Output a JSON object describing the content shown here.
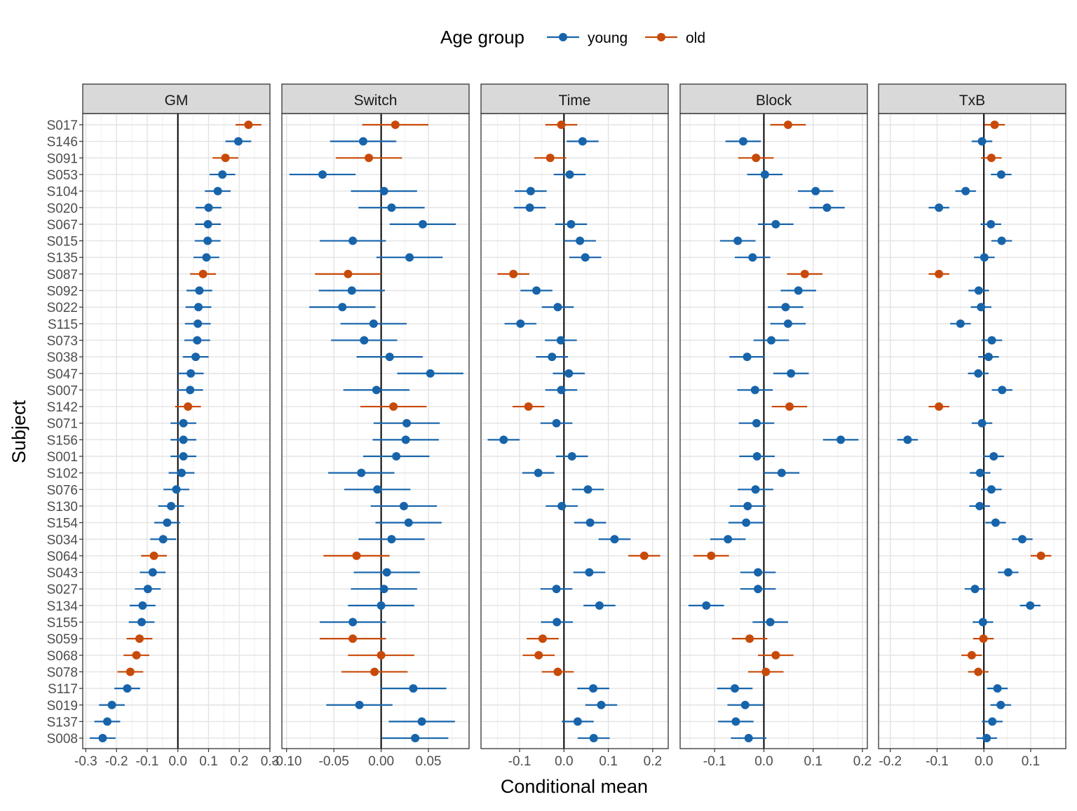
{
  "chart_data": {
    "type": "scatter",
    "xlabel": "Conditional mean",
    "ylabel": "Subject",
    "legend": {
      "title": "Age group",
      "placement": "top",
      "entries": [
        {
          "name": "young",
          "color": "#1764AB"
        },
        {
          "name": "old",
          "color": "#C84A08"
        }
      ]
    },
    "subjects": [
      "S017",
      "S146",
      "S091",
      "S053",
      "S104",
      "S020",
      "S067",
      "S015",
      "S135",
      "S087",
      "S092",
      "S022",
      "S115",
      "S073",
      "S038",
      "S047",
      "S007",
      "S142",
      "S071",
      "S156",
      "S001",
      "S102",
      "S076",
      "S130",
      "S154",
      "S034",
      "S064",
      "S043",
      "S027",
      "S134",
      "S155",
      "S059",
      "S068",
      "S078",
      "S117",
      "S019",
      "S137",
      "S008"
    ],
    "groups": [
      "old",
      "young",
      "old",
      "young",
      "young",
      "young",
      "young",
      "young",
      "young",
      "old",
      "young",
      "young",
      "young",
      "young",
      "young",
      "young",
      "young",
      "old",
      "young",
      "young",
      "young",
      "young",
      "young",
      "young",
      "young",
      "young",
      "old",
      "young",
      "young",
      "young",
      "young",
      "old",
      "old",
      "old",
      "young",
      "young",
      "young",
      "young"
    ],
    "panels": [
      {
        "name": "GM",
        "xlim": [
          -0.31,
          0.3
        ],
        "ticks": [
          -0.3,
          -0.2,
          -0.1,
          0.0,
          0.1,
          0.2,
          0.3
        ],
        "tick_labels": [
          "-0.3",
          "-0.2",
          "-0.1",
          "0.0",
          "0.1",
          "0.2",
          "0.3"
        ],
        "halfwidth": 0.042,
        "values": [
          0.23,
          0.197,
          0.155,
          0.145,
          0.13,
          0.1,
          0.098,
          0.097,
          0.093,
          0.082,
          0.07,
          0.067,
          0.065,
          0.063,
          0.058,
          0.042,
          0.04,
          0.033,
          0.018,
          0.018,
          0.018,
          0.012,
          -0.005,
          -0.022,
          -0.035,
          -0.048,
          -0.078,
          -0.082,
          -0.098,
          -0.115,
          -0.118,
          -0.125,
          -0.135,
          -0.155,
          -0.165,
          -0.215,
          -0.23,
          -0.245
        ]
      },
      {
        "name": "Switch",
        "xlim": [
          -0.105,
          0.093
        ],
        "ticks": [
          -0.1,
          -0.05,
          0.0,
          0.05
        ],
        "tick_labels": [
          "-0.10",
          "-0.05",
          "0.00",
          "0.05"
        ],
        "halfwidth": 0.035,
        "values": [
          0.015,
          -0.019,
          -0.013,
          -0.062,
          0.003,
          0.011,
          0.044,
          -0.03,
          0.03,
          -0.035,
          -0.031,
          -0.041,
          -0.008,
          -0.018,
          0.009,
          0.052,
          -0.005,
          0.013,
          0.027,
          0.026,
          0.016,
          -0.021,
          -0.004,
          0.024,
          0.029,
          0.011,
          -0.026,
          0.006,
          0.003,
          0.0,
          -0.03,
          -0.03,
          0.0,
          -0.007,
          0.034,
          -0.023,
          0.043,
          0.036
        ]
      },
      {
        "name": "Time",
        "xlim": [
          -0.187,
          0.235
        ],
        "ticks": [
          -0.1,
          0.0,
          0.1,
          0.2
        ],
        "tick_labels": [
          "-0.1",
          "0.0",
          "0.1",
          "0.2"
        ],
        "halfwidth": 0.036,
        "values": [
          -0.006,
          0.042,
          -0.031,
          0.013,
          -0.075,
          -0.077,
          0.016,
          0.036,
          0.048,
          -0.114,
          -0.062,
          -0.014,
          -0.098,
          -0.007,
          -0.027,
          0.011,
          -0.006,
          -0.08,
          -0.017,
          -0.136,
          0.018,
          -0.058,
          0.054,
          -0.005,
          0.059,
          0.114,
          0.181,
          0.057,
          -0.017,
          0.08,
          -0.016,
          -0.048,
          -0.057,
          -0.014,
          0.066,
          0.084,
          0.031,
          0.067
        ]
      },
      {
        "name": "Block",
        "xlim": [
          -0.17,
          0.21
        ],
        "ticks": [
          -0.1,
          0.0,
          0.1,
          0.2
        ],
        "tick_labels": [
          "-0.1",
          "0.0",
          "0.1",
          "0.2"
        ],
        "halfwidth": 0.036,
        "values": [
          0.049,
          -0.042,
          -0.016,
          0.002,
          0.105,
          0.128,
          0.024,
          -0.053,
          -0.023,
          0.083,
          0.07,
          0.044,
          0.049,
          0.015,
          -0.034,
          0.055,
          -0.018,
          0.052,
          -0.015,
          0.156,
          -0.014,
          0.036,
          -0.017,
          -0.033,
          -0.036,
          -0.073,
          -0.107,
          -0.012,
          -0.012,
          -0.117,
          0.013,
          -0.029,
          0.024,
          0.004,
          -0.059,
          -0.038,
          -0.057,
          -0.031
        ]
      },
      {
        "name": "TxB",
        "xlim": [
          -0.225,
          0.175
        ],
        "ticks": [
          -0.2,
          -0.1,
          0.0,
          0.1
        ],
        "tick_labels": [
          "-0.2",
          "-0.1",
          "0.0",
          "0.1"
        ],
        "halfwidth": 0.022,
        "values": [
          0.023,
          -0.004,
          0.016,
          0.037,
          -0.039,
          -0.096,
          0.015,
          0.038,
          0.001,
          -0.096,
          -0.011,
          -0.006,
          -0.05,
          0.017,
          0.01,
          -0.012,
          0.039,
          -0.096,
          -0.004,
          -0.163,
          0.021,
          -0.008,
          0.016,
          -0.009,
          0.025,
          0.082,
          0.122,
          0.052,
          -0.019,
          0.099,
          -0.002,
          -0.001,
          -0.026,
          -0.012,
          0.029,
          0.036,
          0.018,
          0.006
        ]
      }
    ]
  }
}
